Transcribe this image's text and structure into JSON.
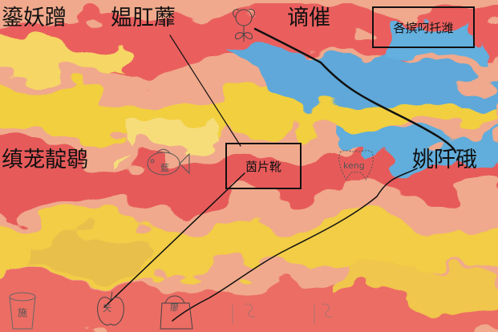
{
  "labels": {
    "top_left_1": "鎏妖蹭",
    "top_left_2": "媪肛蘼",
    "top_mid": "谪催",
    "mid_left": "缜茏靛鹖",
    "mid_right": "姚阡硪"
  },
  "boxes": {
    "top_right": "各摈叼托潍",
    "center": "茵片靴"
  },
  "sketch_text": {
    "fish": "藍",
    "tooth": "keng",
    "cup": "施",
    "apple": "天",
    "bag": "廖"
  },
  "colors": {
    "line": "#111111",
    "red": "#e85a5a",
    "yellow": "#f2d23a",
    "blue": "#4ea7de",
    "peach": "#f3b38e"
  }
}
